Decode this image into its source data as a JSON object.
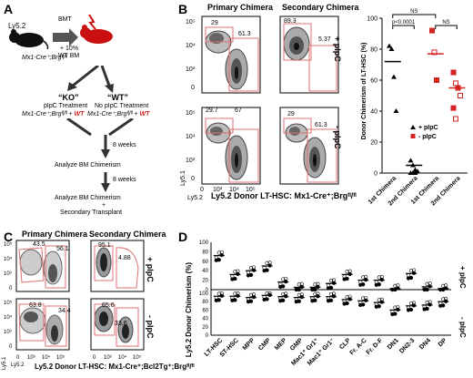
{
  "figure": {
    "panel_labels": {
      "a": "A",
      "b": "B",
      "c": "C",
      "d": "D"
    }
  },
  "panel_a": {
    "donor_mouse": "Ly5.2",
    "donor_genotype": "Mx1-Cre⁺;Brgᶠˡ/ᶠˡ",
    "bmt": "BMT",
    "plus_wt": "+ 10%",
    "wt_bm": "WT BM",
    "ko_title": "“KO”",
    "wt_title": "“WT”",
    "ko_treatment": "pIpC Treatment",
    "wt_treatment": "No pIpC Treatment",
    "genotype": "Mx1-Cre⁺;Brgᶠˡ/ᶠˡ +",
    "wt_suffix": "WT",
    "weeks1": "8 weeks",
    "step1": "Analyze BM Chimerism",
    "weeks2": "8 weeks",
    "step2a": "Analyze BM Chimerism",
    "step2b": "+",
    "step2c": "Secondary Transplant"
  },
  "panel_b": {
    "col_primary": "Primary Chimera",
    "col_secondary": "Secondary Chimera",
    "row_plus": "+ pIpC",
    "row_minus": "- pIpC",
    "ylabel": "Ly5.1",
    "xlabel": "Ly5.2",
    "x_title": "Ly5.2 Donor LT-HSC: Mx1-Cre⁺;Brgᶠˡ/ᶠˡ",
    "ticks_y": [
      "10⁵",
      "10⁴",
      "10³",
      "0"
    ],
    "ticks_x": [
      "0",
      "10³",
      "10⁴",
      "10⁵"
    ],
    "facs": [
      {
        "left": "29",
        "right": "61.3"
      },
      {
        "left": "89.3",
        "right": "5.37"
      },
      {
        "left": "29.7",
        "right": "67"
      },
      {
        "left": "29",
        "right": "61.3"
      }
    ]
  },
  "chart_b": {
    "type": "scatter",
    "ylabel": "Donor Chimerism of LT-HSC (%)",
    "ylim": [
      0,
      100
    ],
    "yticks": [
      "0",
      "20",
      "40",
      "60",
      "80",
      "100"
    ],
    "categories": [
      "1st Chimera",
      "2nd Chimera",
      "1st Chimera",
      "2nd Chimera"
    ],
    "series": [
      {
        "name": "+ pIpC",
        "color": "#000000",
        "marker": "triangle",
        "groups": [
          [
            82,
            80,
            62,
            40
          ],
          [
            8,
            5,
            2,
            1,
            0,
            0,
            0
          ]
        ]
      },
      {
        "name": "- pIpC",
        "color": "#d22222",
        "marker": "square",
        "groups": [
          [
            92,
            78,
            60
          ],
          [
            65,
            58,
            55,
            50,
            42,
            35
          ]
        ]
      }
    ],
    "means": [
      72,
      5,
      77,
      55
    ],
    "annotations": {
      "sig": "p<0.0001",
      "ns1": "NS",
      "ns2": "NS"
    },
    "legend": {
      "plus": "+ pIpC",
      "minus": "- pIpC"
    }
  },
  "panel_c": {
    "col_primary": "Primary Chimera",
    "col_secondary": "Secondary Chimera",
    "row_plus": "+ pIpC",
    "row_minus": "- pIpC",
    "ylabel": "Ly5.1",
    "xlabel": "Ly5.2",
    "x_title": "Ly5.2 Donor LT-HSC: Mx1-Cre⁺;Bcl2Tg⁺;Brgᶠˡ/ᶠˡ",
    "facs": [
      {
        "left": "43.5",
        "right": "56.1"
      },
      {
        "left": "95.1",
        "right": "4.88"
      },
      {
        "left": "63.8",
        "right": "34.4"
      },
      {
        "left": "65.6",
        "right": "33.6"
      }
    ]
  },
  "chart_d": {
    "type": "scatter",
    "ylabel": "Ly5.2 Donor Chimerism (%)",
    "row_plus": "+ pIpC",
    "row_minus": "- pIpC",
    "yticks": [
      "0",
      "20",
      "40",
      "60",
      "80",
      "100"
    ],
    "categories": [
      "LT-HSC",
      "ST-HSC",
      "MPP",
      "CMP",
      "MEP",
      "GMP",
      "Mac1⁺ Gr1⁺",
      "Mac1⁺ Gr1⁻",
      "CLP",
      "Fr. A-C",
      "Fr. D-F",
      "DN1",
      "DN2-3",
      "DN4",
      "DP"
    ],
    "plus_means": [
      72,
      32,
      40,
      50,
      16,
      5,
      5,
      13,
      32,
      20,
      20,
      2,
      34,
      6,
      2
    ],
    "minus_means": [
      93,
      93,
      90,
      95,
      92,
      90,
      92,
      92,
      85,
      82,
      78,
      60,
      70,
      72,
      80
    ]
  }
}
